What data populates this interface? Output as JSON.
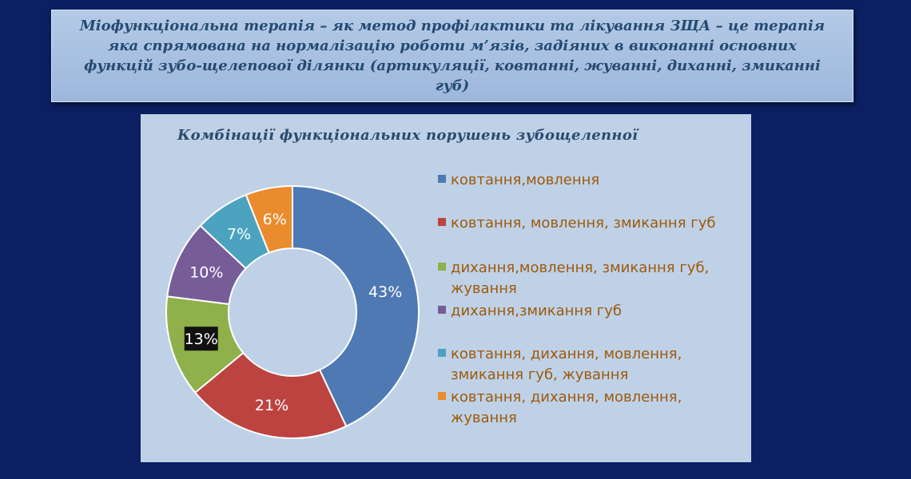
{
  "header": {
    "text": "Міофункціональна терапія – як метод профілактики та лікування ЗЩА – це терапія яка спрямована на нормалізацію роботи м’язів, задіяних в виконанні основних функцій зубо-щелепової ділянки (артикуляції, ковтанні, жуванні, диханні, змиканні губ)"
  },
  "chart_data": {
    "type": "pie",
    "variant": "donut",
    "title": "Комбінації функціональних порушень зубощелепної",
    "legend_position": "right",
    "slices": [
      {
        "label": "ковтання,мовлення",
        "value": 43,
        "display": "43%",
        "color": "#4e79b3"
      },
      {
        "label": "ковтання, мовлення, змикання губ",
        "value": 21,
        "display": "21%",
        "color": "#bd4340"
      },
      {
        "label": "дихання,мовлення, змикання губ, жування",
        "value": 13,
        "display": "13%",
        "color": "#8fb04a"
      },
      {
        "label": "дихання,змикання губ",
        "value": 10,
        "display": "10%",
        "color": "#775d98"
      },
      {
        "label": "ковтання, дихання, мовлення, змикання губ, жування",
        "value": 7,
        "display": "7%",
        "color": "#4ba3bf"
      },
      {
        "label": "ковтання, дихання, мовлення, жування",
        "value": 6,
        "display": "6%",
        "color": "#ea8b2e"
      }
    ]
  }
}
